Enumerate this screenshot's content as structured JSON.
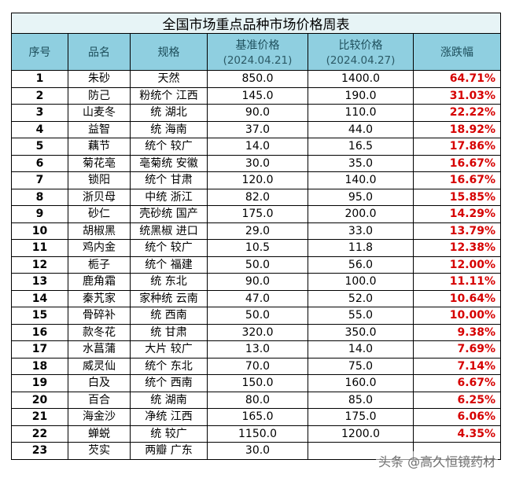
{
  "title": "全国市场重点品种市场价格周表",
  "headers": {
    "index": "序号",
    "name": "品名",
    "spec": "规格",
    "base_price": "基准价格",
    "base_date": "(2024.04.21)",
    "compare_price": "比较价格",
    "compare_date": "(2024.04.27)",
    "change": "涨跌幅"
  },
  "rows": [
    {
      "idx": "1",
      "name": "朱砂",
      "spec": "天然",
      "base": "850.0",
      "compare": "1400.0",
      "change": "64.71%"
    },
    {
      "idx": "2",
      "name": "防己",
      "spec": "粉统个 江西",
      "base": "145.0",
      "compare": "190.0",
      "change": "31.03%"
    },
    {
      "idx": "3",
      "name": "山麦冬",
      "spec": "统 湖北",
      "base": "90.0",
      "compare": "110.0",
      "change": "22.22%"
    },
    {
      "idx": "4",
      "name": "益智",
      "spec": "统 海南",
      "base": "37.0",
      "compare": "44.0",
      "change": "18.92%"
    },
    {
      "idx": "5",
      "name": "藕节",
      "spec": "统个 较广",
      "base": "14.0",
      "compare": "16.5",
      "change": "17.86%"
    },
    {
      "idx": "6",
      "name": "菊花亳",
      "spec": "亳菊统 安徽",
      "base": "30.0",
      "compare": "35.0",
      "change": "16.67%"
    },
    {
      "idx": "7",
      "name": "锁阳",
      "spec": "统个 甘肃",
      "base": "120.0",
      "compare": "140.0",
      "change": "16.67%"
    },
    {
      "idx": "8",
      "name": "浙贝母",
      "spec": "中统 浙江",
      "base": "82.0",
      "compare": "95.0",
      "change": "15.85%"
    },
    {
      "idx": "9",
      "name": "砂仁",
      "spec": "壳砂统 国产",
      "base": "175.0",
      "compare": "200.0",
      "change": "14.29%"
    },
    {
      "idx": "10",
      "name": "胡椒黑",
      "spec": "统黑椒 进口",
      "base": "29.0",
      "compare": "33.0",
      "change": "13.79%"
    },
    {
      "idx": "11",
      "name": "鸡内金",
      "spec": "统个 较广",
      "base": "10.5",
      "compare": "11.8",
      "change": "12.38%"
    },
    {
      "idx": "12",
      "name": "栀子",
      "spec": "统个 福建",
      "base": "50.0",
      "compare": "56.0",
      "change": "12.00%"
    },
    {
      "idx": "13",
      "name": "鹿角霜",
      "spec": "统 东北",
      "base": "90.0",
      "compare": "100.0",
      "change": "11.11%"
    },
    {
      "idx": "14",
      "name": "秦艽家",
      "spec": "家种统 云南",
      "base": "47.0",
      "compare": "52.0",
      "change": "10.64%"
    },
    {
      "idx": "15",
      "name": "骨碎补",
      "spec": "统 西南",
      "base": "50.0",
      "compare": "55.0",
      "change": "10.00%"
    },
    {
      "idx": "16",
      "name": "款冬花",
      "spec": "统 甘肃",
      "base": "320.0",
      "compare": "350.0",
      "change": "9.38%"
    },
    {
      "idx": "17",
      "name": "水菖蒲",
      "spec": "大片 较广",
      "base": "13.0",
      "compare": "14.0",
      "change": "7.69%"
    },
    {
      "idx": "18",
      "name": "威灵仙",
      "spec": "统个 东北",
      "base": "70.0",
      "compare": "75.0",
      "change": "7.14%"
    },
    {
      "idx": "19",
      "name": "白及",
      "spec": "统个 西南",
      "base": "150.0",
      "compare": "160.0",
      "change": "6.67%"
    },
    {
      "idx": "20",
      "name": "百合",
      "spec": "统 湖南",
      "base": "80.0",
      "compare": "85.0",
      "change": "6.25%"
    },
    {
      "idx": "21",
      "name": "海金沙",
      "spec": "净统 江西",
      "base": "165.0",
      "compare": "175.0",
      "change": "6.06%"
    },
    {
      "idx": "22",
      "name": "蝉蜕",
      "spec": "统 较广",
      "base": "1150.0",
      "compare": "1200.0",
      "change": "4.35%"
    },
    {
      "idx": "23",
      "name": "芡实",
      "spec": "两瓣 广东",
      "base": "30.0",
      "compare": "",
      "change": ""
    }
  ],
  "watermark": "头条 @高久恒镜药材",
  "colors": {
    "title_bg": "#e7f4f6",
    "header_bg": "#8fcfe0",
    "change_text": "#d60000"
  }
}
